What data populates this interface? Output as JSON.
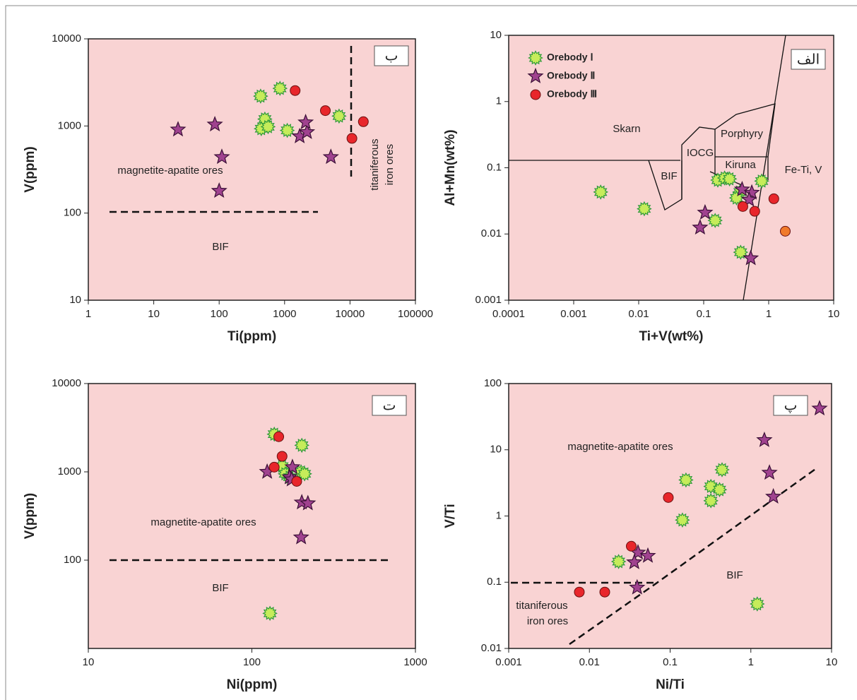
{
  "chart_data": [
    {
      "type": "scatter",
      "panel_label": "ب",
      "xlabel": "Ti(ppm)",
      "ylabel": "V(ppm)",
      "xscale": "log",
      "yscale": "log",
      "xlim": [
        1,
        100000
      ],
      "xticks": [
        1,
        10,
        100,
        1000,
        10000,
        100000
      ],
      "ylim": [
        10,
        10000
      ],
      "yticks": [
        10,
        100,
        1000,
        10000
      ],
      "annotations": [
        "magnetite-apatite ores",
        "BIF",
        "titaniferous",
        "iron ores"
      ],
      "series": [
        {
          "color": "#c6ec5a",
          "marker": "star12",
          "x": [
            430,
            850,
            500,
            440,
            560,
            1100,
            6800
          ],
          "values": [
            2200,
            2700,
            1200,
            930,
            980,
            890,
            1300
          ]
        },
        {
          "color": "#a0428f",
          "marker": "star5",
          "x": [
            23.5,
            86,
            110,
            100,
            1700,
            2200,
            2100,
            5100
          ],
          "values": [
            910,
            1040,
            440,
            180,
            760,
            850,
            1100,
            440
          ]
        },
        {
          "color": "#e8262b",
          "marker": "circle",
          "x": [
            1450,
            4200,
            10700,
            16000
          ],
          "values": [
            2550,
            1500,
            720,
            1120
          ]
        }
      ]
    },
    {
      "type": "scatter",
      "panel_label": "الف",
      "xlabel": "Ti+V(wt%)",
      "ylabel": "Al+Mn(wt%)",
      "xscale": "log",
      "yscale": "log",
      "legend": "upper left",
      "xlim": [
        0.0001,
        10
      ],
      "xticks": [
        0.0001,
        0.001,
        0.01,
        0.1,
        1,
        10
      ],
      "ylim": [
        0.001,
        10
      ],
      "yticks": [
        0.001,
        0.01,
        0.1,
        1,
        10
      ],
      "annotations": [
        "Skarn",
        "IOCG",
        "Porphyry",
        "Kiruna",
        "BIF",
        "Fe-Ti, V"
      ],
      "series": [
        {
          "name": "Orebody Ⅰ",
          "color": "#c6ec5a",
          "marker": "star12",
          "x": [
            0.0026,
            0.0122,
            0.165,
            0.21,
            0.25,
            0.78,
            0.15,
            0.36,
            0.32,
            0.37
          ],
          "values": [
            0.043,
            0.024,
            0.065,
            0.07,
            0.068,
            0.063,
            0.016,
            0.043,
            0.035,
            0.0053
          ]
        },
        {
          "name": "Orebody Ⅱ",
          "color": "#a0428f",
          "marker": "star5",
          "x": [
            0.105,
            0.088,
            0.39,
            0.55,
            0.5,
            0.53
          ],
          "values": [
            0.021,
            0.0125,
            0.047,
            0.042,
            0.033,
            0.0043
          ]
        },
        {
          "name": "Orebody Ⅲ",
          "color": "#e8262b",
          "marker": "circle",
          "x": [
            0.4,
            0.61,
            1.2
          ],
          "values": [
            0.026,
            0.022,
            0.034
          ]
        },
        {
          "color": "#f07a2a",
          "marker": "circle",
          "x": [
            1.8
          ],
          "values": [
            0.011
          ]
        }
      ]
    },
    {
      "type": "scatter",
      "panel_label": "ت",
      "xlabel": "Ni(ppm)",
      "ylabel": "V(ppm)",
      "xscale": "log",
      "yscale": "log",
      "xlim": [
        10,
        1000
      ],
      "xticks": [
        10,
        100,
        1000
      ],
      "ylim": [
        10,
        10000
      ],
      "yticks": [
        100,
        1000,
        10000
      ],
      "annotations": [
        "magnetite-apatite ores",
        "BIF"
      ],
      "series": [
        {
          "color": "#c6ec5a",
          "marker": "star12",
          "x": [
            137,
            202,
            153,
            160,
            170,
            200,
            210,
            129
          ],
          "values": [
            2670,
            2000,
            1160,
            950,
            870,
            1000,
            950,
            25
          ]
        },
        {
          "color": "#a0428f",
          "marker": "star5",
          "x": [
            124,
            177,
            170,
            175,
            202,
            220,
            200
          ],
          "values": [
            1000,
            1130,
            870,
            820,
            450,
            440,
            181
          ]
        },
        {
          "color": "#e8262b",
          "marker": "circle",
          "x": [
            146,
            153,
            137,
            188
          ],
          "values": [
            2500,
            1500,
            1130,
            780
          ]
        }
      ]
    },
    {
      "type": "scatter",
      "panel_label": "پ",
      "xlabel": "Ni/Ti",
      "ylabel": "V/Ti",
      "xscale": "log",
      "yscale": "log",
      "xlim": [
        0.001,
        10
      ],
      "xticks": [
        0.001,
        0.01,
        0.1,
        1,
        10
      ],
      "ylim": [
        0.01,
        100
      ],
      "yticks": [
        0.01,
        0.1,
        1,
        10,
        100
      ],
      "annotations": [
        "magnetite-apatite ores",
        "titaniferous",
        "iron ores",
        "BIF"
      ],
      "series": [
        {
          "color": "#c6ec5a",
          "marker": "star12",
          "x": [
            0.023,
            0.142,
            0.157,
            0.32,
            0.32,
            0.41,
            0.44,
            1.2
          ],
          "values": [
            0.205,
            0.87,
            3.5,
            2.8,
            1.7,
            2.5,
            5.0,
            0.047
          ]
        },
        {
          "color": "#a0428f",
          "marker": "star5",
          "x": [
            0.04,
            0.036,
            0.053,
            0.039,
            1.47,
            1.7,
            1.9,
            7.1
          ],
          "values": [
            0.28,
            0.2,
            0.25,
            0.083,
            14,
            4.5,
            1.96,
            42
          ]
        },
        {
          "color": "#e8262b",
          "marker": "circle",
          "x": [
            0.0075,
            0.0155,
            0.033,
            0.095
          ],
          "values": [
            0.071,
            0.071,
            0.35,
            1.9
          ]
        }
      ]
    }
  ]
}
